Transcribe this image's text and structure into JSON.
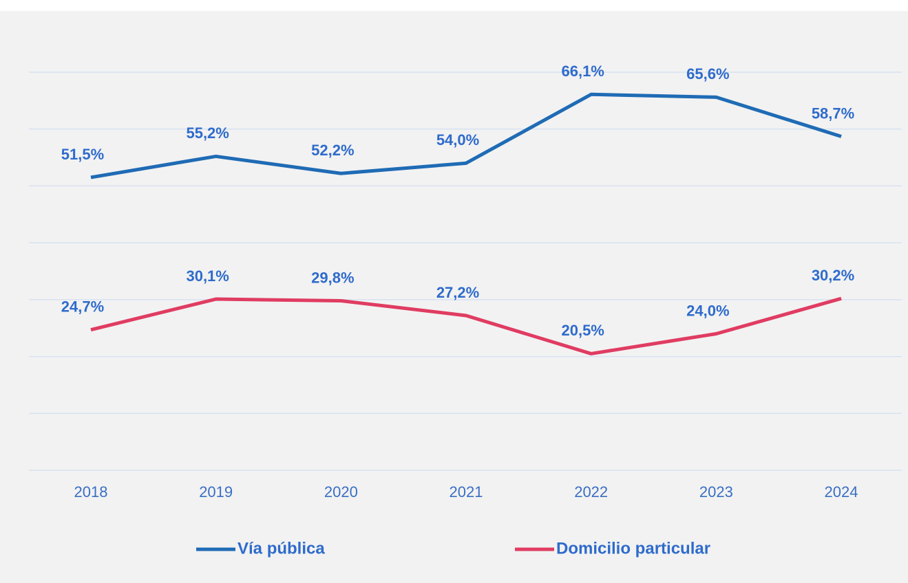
{
  "chart_data": {
    "type": "line",
    "categories": [
      "2018",
      "2019",
      "2020",
      "2021",
      "2022",
      "2023",
      "2024"
    ],
    "series": [
      {
        "name": "Vía pública",
        "color": "#1f6bb5",
        "values": [
          51.5,
          55.2,
          52.2,
          54.0,
          66.1,
          65.6,
          58.7
        ],
        "value_labels": [
          "51,5%",
          "55,2%",
          "52,2%",
          "54,0%",
          "66,1%",
          "65,6%",
          "58,7%"
        ]
      },
      {
        "name": "Domicilio particular",
        "color": "#e03c62",
        "values": [
          24.7,
          30.1,
          29.8,
          27.2,
          20.5,
          24.0,
          30.2
        ],
        "value_labels": [
          "24,7%",
          "30,1%",
          "29,8%",
          "27,2%",
          "20,5%",
          "24,0%",
          "30,2%"
        ]
      }
    ],
    "ylim": [
      0,
      70
    ],
    "yticks": [
      0,
      10,
      20,
      30,
      40,
      50,
      60,
      70
    ],
    "grid": true,
    "legend": "bottom"
  }
}
